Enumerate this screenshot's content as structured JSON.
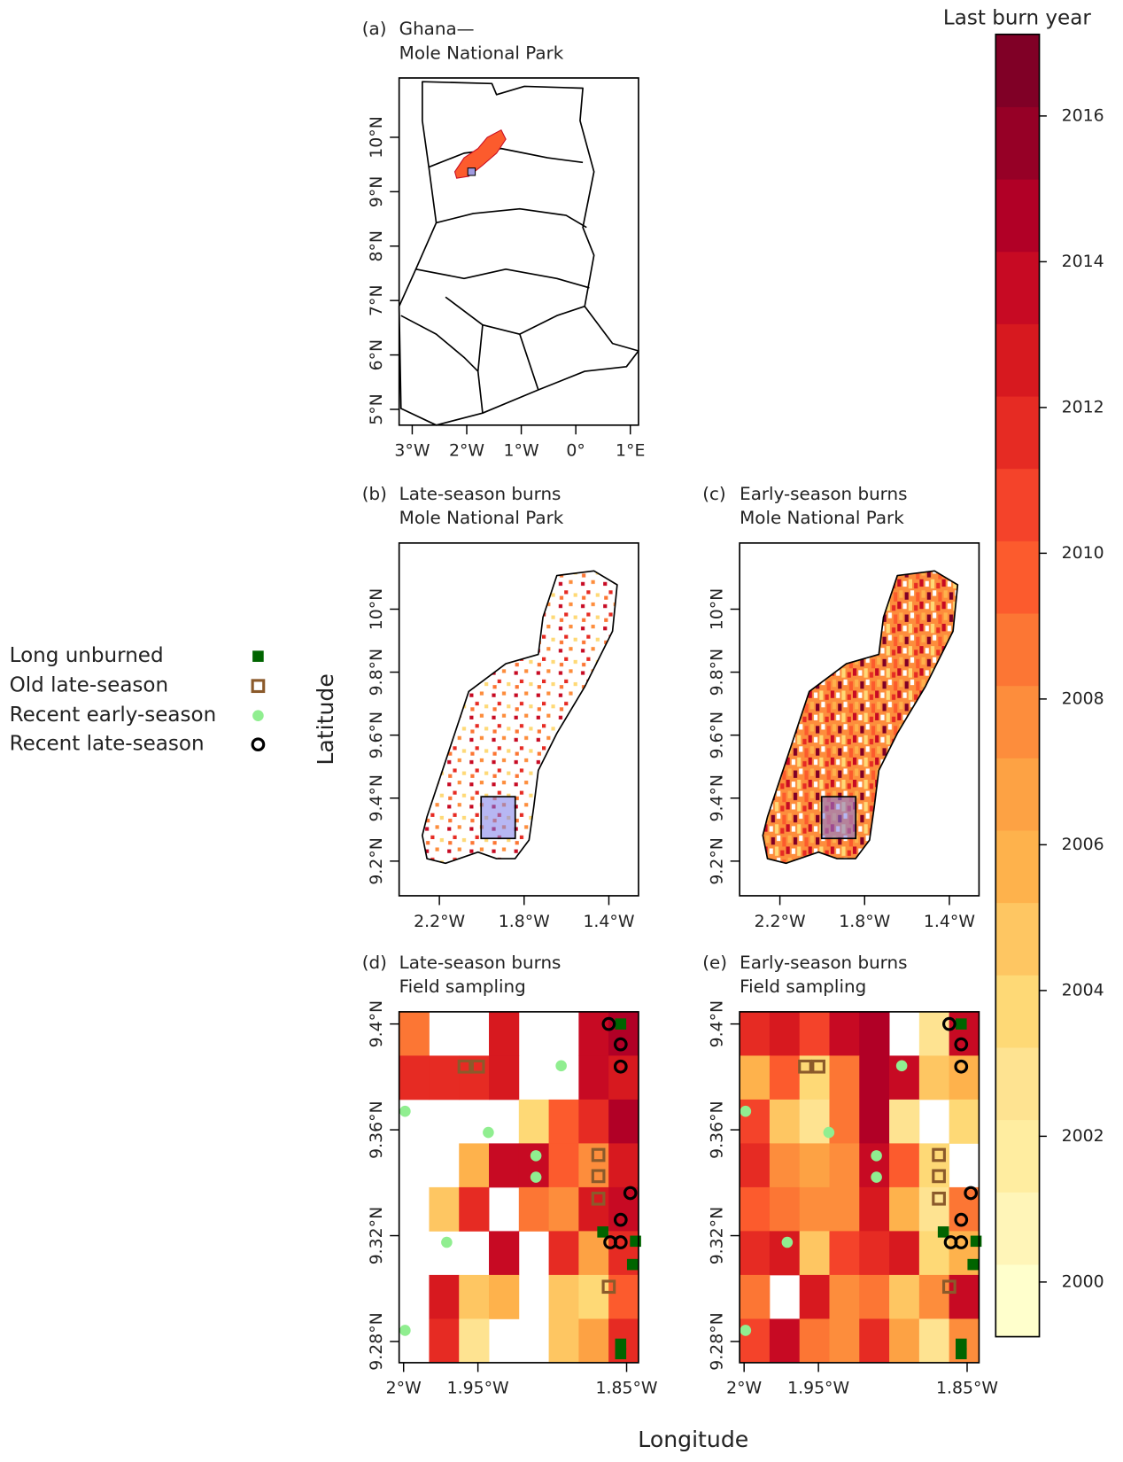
{
  "axis_labels": {
    "y": "Latitude",
    "x": "Longitude"
  },
  "colorbar": {
    "title": "Last burn year",
    "lim": [
      1999.25,
      2017.12
    ],
    "ticks": [
      2000,
      2002,
      2004,
      2006,
      2008,
      2010,
      2012,
      2014,
      2016
    ],
    "colors": [
      "#ffffcc",
      "#fff5b8",
      "#ffeda0",
      "#fee391",
      "#fed976",
      "#fec662",
      "#feb24c",
      "#fda244",
      "#fd8d3c",
      "#fc7634",
      "#fc5b2d",
      "#f4432a",
      "#e62b23",
      "#d7191f",
      "#c70a23",
      "#b10026",
      "#960026",
      "#800026"
    ]
  },
  "legend": {
    "items": [
      {
        "label": "Long unburned",
        "color": "#006400",
        "shape": "square-filled",
        "points": [
          [
            -1.854,
            9.4
          ],
          [
            -1.866,
            9.3214
          ],
          [
            -1.844,
            9.3179
          ],
          [
            -1.846,
            9.3091
          ],
          [
            -1.854,
            9.279
          ],
          [
            -1.854,
            9.2754
          ]
        ]
      },
      {
        "label": "Old late-season",
        "color": "#8b5a2b",
        "shape": "square-open",
        "points": [
          [
            -1.959,
            9.3839
          ],
          [
            -1.95,
            9.3839
          ],
          [
            -1.869,
            9.3505
          ],
          [
            -1.869,
            9.3425
          ],
          [
            -1.869,
            9.334
          ],
          [
            -1.862,
            9.3007
          ]
        ]
      },
      {
        "label": "Recent early-season",
        "color": "#90ee90",
        "shape": "circle-filled",
        "points": [
          [
            -1.894,
            9.3842
          ],
          [
            -1.999,
            9.367
          ],
          [
            -1.943,
            9.359
          ],
          [
            -1.911,
            9.3502
          ],
          [
            -1.911,
            9.3421
          ],
          [
            -1.971,
            9.3175
          ],
          [
            -1.999,
            9.2842
          ]
        ]
      },
      {
        "label": "Recent late-season",
        "color": "#000000",
        "shape": "circle-open",
        "points": [
          [
            -1.862,
            9.4
          ],
          [
            -1.854,
            9.3923
          ],
          [
            -1.854,
            9.3839
          ],
          [
            -1.8475,
            9.3361
          ],
          [
            -1.854,
            9.326
          ],
          [
            -1.861,
            9.3175
          ],
          [
            -1.854,
            9.3175
          ]
        ]
      }
    ]
  },
  "panels": [
    {
      "label": "(a)",
      "title": [
        "Ghana—",
        "Mole National Park"
      ],
      "xlim": [
        -3.24,
        1.15
      ],
      "ylim": [
        4.71,
        11.09
      ],
      "xticks": [
        {
          "value": -3,
          "label": "3°W"
        },
        {
          "value": -2,
          "label": "2°W"
        },
        {
          "value": -1,
          "label": "1°W"
        },
        {
          "value": 0,
          "label": "0°"
        },
        {
          "value": 1,
          "label": "1°E"
        }
      ],
      "yticks": [
        {
          "value": 5,
          "label": "5°N"
        },
        {
          "value": 6,
          "label": "6°N"
        },
        {
          "value": 7,
          "label": "7°N"
        },
        {
          "value": 8,
          "label": "8°N"
        },
        {
          "value": 9,
          "label": "9°N"
        },
        {
          "value": 10,
          "label": "10°N"
        }
      ]
    },
    {
      "label": "(b)",
      "title": [
        "Late-season burns",
        "Mole National Park"
      ],
      "xlim": [
        -2.39,
        -1.26
      ],
      "ylim": [
        9.09,
        10.21
      ],
      "xticks": [
        {
          "value": -2.2,
          "label": "2.2°W"
        },
        {
          "value": -1.8,
          "label": "1.8°W"
        },
        {
          "value": -1.4,
          "label": "1.4°W"
        }
      ],
      "yticks": [
        {
          "value": 9.2,
          "label": "9.2°N"
        },
        {
          "value": 9.4,
          "label": "9.4°N"
        },
        {
          "value": 9.6,
          "label": "9.6°N"
        },
        {
          "value": 9.8,
          "label": "9.8°N"
        },
        {
          "value": 10,
          "label": "10°N"
        }
      ]
    },
    {
      "label": "(c)",
      "title": [
        "Early-season burns",
        "Mole National Park"
      ],
      "xlim": [
        -2.39,
        -1.26
      ],
      "ylim": [
        9.09,
        10.21
      ],
      "xticks": [
        {
          "value": -2.2,
          "label": "2.2°W"
        },
        {
          "value": -1.8,
          "label": "1.8°W"
        },
        {
          "value": -1.4,
          "label": "1.4°W"
        }
      ],
      "yticks": [
        {
          "value": 9.2,
          "label": "9.2°N"
        },
        {
          "value": 9.4,
          "label": "9.4°N"
        },
        {
          "value": 9.6,
          "label": "9.6°N"
        },
        {
          "value": 9.8,
          "label": "9.8°N"
        },
        {
          "value": 10,
          "label": "10°N"
        }
      ]
    },
    {
      "label": "(d)",
      "title": [
        "Late-season burns",
        "Field sampling"
      ],
      "xlim": [
        -2.003,
        -1.842
      ],
      "ylim": [
        9.272,
        9.4046
      ],
      "xticks": [
        {
          "value": -2,
          "label": "2°W"
        },
        {
          "value": -1.95,
          "label": "1.95°W"
        },
        {
          "value": -1.85,
          "label": "1.85°W"
        }
      ],
      "yticks": [
        {
          "value": 9.28,
          "label": "9.28°N"
        },
        {
          "value": 9.32,
          "label": "9.32°N"
        },
        {
          "value": 9.36,
          "label": "9.36°N"
        },
        {
          "value": 9.4,
          "label": "9.4°N"
        }
      ],
      "raster": [
        [
          2009,
          null,
          null,
          2013,
          null,
          null,
          2014,
          2015
        ],
        [
          2012,
          2012,
          2012,
          2013,
          null,
          null,
          2014,
          2013
        ],
        [
          null,
          null,
          null,
          null,
          2004,
          2010,
          2012,
          2015
        ],
        [
          null,
          null,
          2006,
          2014,
          2014,
          2010,
          2008,
          2013
        ],
        [
          null,
          2005,
          2012,
          null,
          2009,
          2008,
          2013,
          2014
        ],
        [
          null,
          null,
          null,
          2014,
          null,
          2012,
          2007,
          2012
        ],
        [
          null,
          2013,
          2005,
          2006,
          null,
          2005,
          2004,
          2010
        ],
        [
          null,
          2012,
          2003,
          null,
          null,
          2005,
          2007,
          2012
        ]
      ]
    },
    {
      "label": "(e)",
      "title": [
        "Early-season burns",
        "Field sampling"
      ],
      "xlim": [
        -2.003,
        -1.842
      ],
      "ylim": [
        9.272,
        9.4046
      ],
      "xticks": [
        {
          "value": -2,
          "label": "2°W"
        },
        {
          "value": -1.95,
          "label": "1.95°W"
        },
        {
          "value": -1.85,
          "label": "1.85°W"
        }
      ],
      "yticks": [
        {
          "value": 9.28,
          "label": "9.28°N"
        },
        {
          "value": 9.32,
          "label": "9.32°N"
        },
        {
          "value": 9.36,
          "label": "9.36°N"
        },
        {
          "value": 9.4,
          "label": "9.4°N"
        }
      ],
      "raster": [
        [
          2012,
          2013,
          2011,
          2014,
          2015,
          null,
          2003,
          2014
        ],
        [
          2006,
          2010,
          2004,
          2009,
          2015,
          2014,
          2005,
          2006
        ],
        [
          2011,
          2005,
          2003,
          2009,
          2015,
          2003,
          null,
          2004
        ],
        [
          2012,
          2008,
          2007,
          2008,
          2014,
          2010,
          2004,
          null
        ],
        [
          2010,
          2009,
          2008,
          2008,
          2013,
          2006,
          2003,
          2009
        ],
        [
          2012,
          2013,
          2005,
          2011,
          2012,
          2013,
          2004,
          2006
        ],
        [
          2009,
          null,
          2013,
          2008,
          2009,
          2005,
          2008,
          2014
        ],
        [
          2011,
          2014,
          2009,
          2008,
          2012,
          2007,
          2003,
          2008
        ]
      ]
    }
  ]
}
